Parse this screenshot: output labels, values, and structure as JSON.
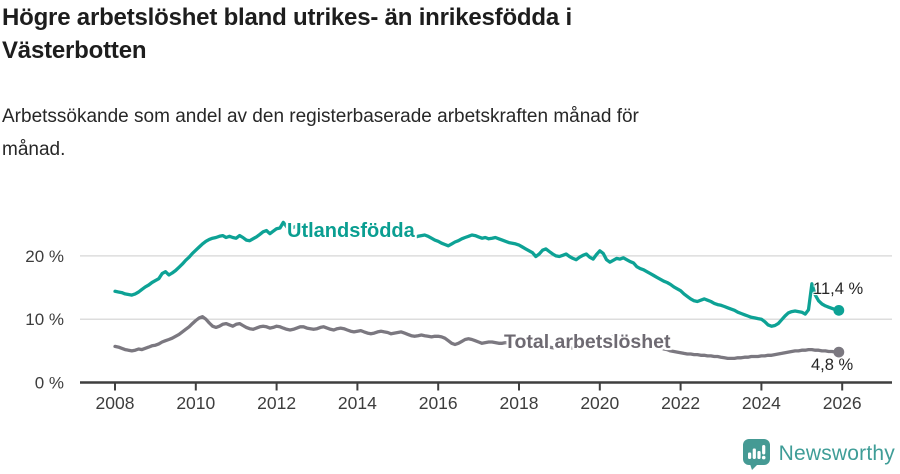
{
  "header": {
    "title_line1": "Högre arbetslöshet bland utrikes- än inrikesfödda i",
    "title_line2": "Västerbotten",
    "subtitle_line1": "Arbetssökande som andel av den registerbaserade arbetskraften månad för",
    "subtitle_line2": "månad."
  },
  "chart_data": {
    "type": "line",
    "unit": "%",
    "grid": true,
    "x_start_year": 2008,
    "x_months_per_point": 1,
    "ylim": [
      0,
      27
    ],
    "xlim": [
      2007.3,
      2027.2
    ],
    "y_ticks": [
      {
        "label": "0 %",
        "value": 0
      },
      {
        "label": "10 %",
        "value": 10
      },
      {
        "label": "20 %",
        "value": 20
      }
    ],
    "x_ticks": [
      {
        "label": "2008",
        "year": 2008
      },
      {
        "label": "2010",
        "year": 2010
      },
      {
        "label": "2012",
        "year": 2012
      },
      {
        "label": "2014",
        "year": 2014
      },
      {
        "label": "2016",
        "year": 2016
      },
      {
        "label": "2018",
        "year": 2018
      },
      {
        "label": "2020",
        "year": 2020
      },
      {
        "label": "2022",
        "year": 2022
      },
      {
        "label": "2024",
        "year": 2024
      },
      {
        "label": "2026",
        "year": 2026
      }
    ],
    "axis_color": "#3f3f3f",
    "grid_color": "#dddddd",
    "tick_text_color": "#3d3d3d",
    "series": [
      {
        "id": "utlandsfodda",
        "name": "Utlandsfödda",
        "color": "#0da295",
        "label_color": "#0a9e91",
        "end_label": "11,4 %",
        "end_value": 11.4,
        "values": [
          14.4,
          14.3,
          14.2,
          14.0,
          13.9,
          13.8,
          14.0,
          14.3,
          14.7,
          15.1,
          15.4,
          15.8,
          16.1,
          16.4,
          17.2,
          17.5,
          17.0,
          17.3,
          17.7,
          18.2,
          18.7,
          19.3,
          19.8,
          20.4,
          20.9,
          21.4,
          21.9,
          22.3,
          22.6,
          22.8,
          22.9,
          23.1,
          23.2,
          22.9,
          23.1,
          22.9,
          22.8,
          23.2,
          22.9,
          22.5,
          22.4,
          22.7,
          23.0,
          23.4,
          23.8,
          24.0,
          23.5,
          23.9,
          24.3,
          24.4,
          25.3,
          24.6,
          24.3,
          24.5,
          24.7,
          24.4,
          24.2,
          24.5,
          24.3,
          24.1,
          24.2,
          24.4,
          24.1,
          23.9,
          24.0,
          24.2,
          23.9,
          23.7,
          23.8,
          23.6,
          23.4,
          23.5,
          23.6,
          23.4,
          23.2,
          23.3,
          23.1,
          23.0,
          23.2,
          23.4,
          23.3,
          23.1,
          23.0,
          23.2,
          23.1,
          23.3,
          23.4,
          23.2,
          23.0,
          22.9,
          23.1,
          23.2,
          23.3,
          23.1,
          22.8,
          22.5,
          22.3,
          22.0,
          21.8,
          21.6,
          21.9,
          22.2,
          22.4,
          22.7,
          22.9,
          23.1,
          23.3,
          23.2,
          23.0,
          22.8,
          22.9,
          22.7,
          22.8,
          22.9,
          22.7,
          22.5,
          22.3,
          22.1,
          22.0,
          21.9,
          21.7,
          21.4,
          21.1,
          20.8,
          20.5,
          19.9,
          20.3,
          20.9,
          21.1,
          20.7,
          20.3,
          20.0,
          19.9,
          20.1,
          20.3,
          19.9,
          19.6,
          19.4,
          19.8,
          20.1,
          20.3,
          19.8,
          19.5,
          20.2,
          20.8,
          20.4,
          19.4,
          19.0,
          19.3,
          19.6,
          19.5,
          19.7,
          19.4,
          19.1,
          18.9,
          18.3,
          18.0,
          17.8,
          17.5,
          17.2,
          16.9,
          16.6,
          16.3,
          16.0,
          15.8,
          15.5,
          15.1,
          14.8,
          14.5,
          14.0,
          13.6,
          13.2,
          12.9,
          12.8,
          13.0,
          13.2,
          13.0,
          12.8,
          12.5,
          12.3,
          12.2,
          12.0,
          11.8,
          11.6,
          11.4,
          11.1,
          10.9,
          10.7,
          10.5,
          10.3,
          10.2,
          10.1,
          10.0,
          9.6,
          9.1,
          8.9,
          9.0,
          9.3,
          9.9,
          10.5,
          11.0,
          11.2,
          11.3,
          11.2,
          11.1,
          10.8,
          11.5,
          15.6,
          13.8,
          12.9,
          12.4,
          12.1,
          11.9,
          11.7,
          11.5,
          11.4
        ]
      },
      {
        "id": "total-arbetsloshet",
        "name": "Total arbetslöshet",
        "color": "#7b7880",
        "label_color": "#6e6a72",
        "end_label": "4,8 %",
        "end_value": 4.8,
        "values": [
          5.7,
          5.6,
          5.4,
          5.2,
          5.1,
          5.0,
          5.1,
          5.3,
          5.2,
          5.4,
          5.6,
          5.8,
          5.9,
          6.1,
          6.4,
          6.6,
          6.8,
          7.0,
          7.3,
          7.6,
          8.0,
          8.4,
          8.8,
          9.3,
          9.8,
          10.2,
          10.4,
          10.0,
          9.4,
          8.9,
          8.7,
          8.9,
          9.2,
          9.3,
          9.1,
          8.9,
          9.2,
          9.3,
          9.0,
          8.7,
          8.5,
          8.4,
          8.6,
          8.8,
          8.9,
          8.8,
          8.6,
          8.7,
          8.9,
          8.8,
          8.6,
          8.4,
          8.3,
          8.4,
          8.6,
          8.8,
          8.8,
          8.6,
          8.5,
          8.4,
          8.5,
          8.7,
          8.8,
          8.6,
          8.4,
          8.3,
          8.5,
          8.6,
          8.5,
          8.3,
          8.1,
          8.0,
          8.1,
          8.2,
          8.0,
          7.8,
          7.7,
          7.8,
          8.0,
          8.1,
          8.0,
          7.9,
          7.7,
          7.8,
          7.9,
          8.0,
          7.8,
          7.6,
          7.4,
          7.3,
          7.4,
          7.5,
          7.4,
          7.3,
          7.2,
          7.3,
          7.3,
          7.2,
          7.0,
          6.6,
          6.2,
          6.0,
          6.2,
          6.5,
          6.8,
          6.9,
          6.8,
          6.6,
          6.4,
          6.2,
          6.3,
          6.4,
          6.4,
          6.3,
          6.2,
          6.2,
          6.3,
          6.2,
          6.1,
          6.0,
          6.0,
          5.9,
          5.8,
          5.7,
          5.6,
          5.6,
          5.7,
          5.8,
          5.7,
          5.6,
          5.5,
          5.5,
          5.6,
          5.7,
          5.6,
          5.5,
          5.4,
          5.4,
          5.5,
          5.6,
          5.5,
          5.5,
          5.6,
          5.7,
          5.9,
          6.0,
          6.5,
          7.0,
          7.2,
          7.3,
          7.2,
          7.1,
          7.0,
          6.9,
          6.7,
          6.6,
          6.5,
          6.4,
          6.2,
          6.0,
          5.8,
          5.6,
          5.5,
          5.3,
          5.2,
          5.0,
          4.9,
          4.8,
          4.7,
          4.6,
          4.5,
          4.5,
          4.4,
          4.4,
          4.3,
          4.3,
          4.2,
          4.2,
          4.1,
          4.1,
          4.0,
          3.9,
          3.8,
          3.8,
          3.8,
          3.9,
          3.9,
          4.0,
          4.0,
          4.1,
          4.1,
          4.1,
          4.2,
          4.2,
          4.3,
          4.3,
          4.4,
          4.5,
          4.6,
          4.7,
          4.8,
          4.9,
          5.0,
          5.0,
          5.1,
          5.1,
          5.2,
          5.2,
          5.1,
          5.1,
          5.0,
          5.0,
          4.9,
          4.9,
          4.8,
          4.8
        ]
      }
    ]
  },
  "footer": {
    "brand": "Newsworthy",
    "logo_icon": "bar-chart-speech-bubble-icon",
    "brand_color": "#3f9d97",
    "logo_bg_color": "#459a94"
  }
}
